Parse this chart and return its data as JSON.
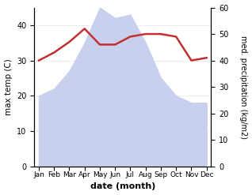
{
  "months": [
    "Jan",
    "Feb",
    "Mar",
    "Apr",
    "May",
    "Jun",
    "Jul",
    "Aug",
    "Sep",
    "Oct",
    "Nov",
    "Dec"
  ],
  "max_temp": [
    20,
    22,
    27,
    35,
    45,
    42,
    43,
    35,
    25,
    20,
    18,
    18
  ],
  "med_precip": [
    40,
    43,
    47,
    52,
    46,
    46,
    49,
    50,
    50,
    49,
    40,
    41
  ],
  "temp_fill_color": "#c8d0ed",
  "precip_color": "#c03030",
  "ylabel_left": "max temp (C)",
  "ylabel_right": "med. precipitation (kg/m2)",
  "xlabel": "date (month)",
  "ylim_left": [
    0,
    45
  ],
  "ylim_right": [
    0,
    60
  ],
  "yticks_left": [
    0,
    10,
    20,
    30,
    40
  ],
  "yticks_right": [
    0,
    10,
    20,
    30,
    40,
    50,
    60
  ],
  "background_color": "#ffffff"
}
